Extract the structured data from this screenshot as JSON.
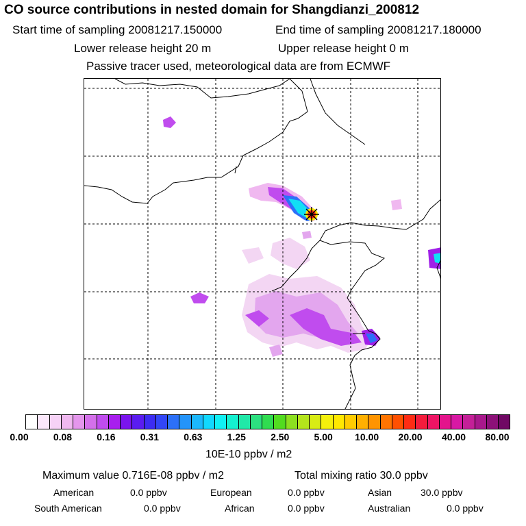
{
  "header": {
    "title": "CO  source contributions in nested domain for Shangdianzi_200812",
    "start_label": "Start time of sampling 20081217.150000",
    "end_label": "End time of sampling 20081217.180000",
    "lower_release": "Lower release height   20 m",
    "upper_release": "Upper release height    0 m",
    "tracer_note": "Passive tracer used, meteorological data are from ECMWF"
  },
  "colorbar": {
    "colors": [
      "#ffffff",
      "#fbe8fb",
      "#f6d2f6",
      "#f0b8f0",
      "#e496ec",
      "#d470ea",
      "#c04cee",
      "#a81eee",
      "#7a14ee",
      "#5a1cf0",
      "#3c2cf2",
      "#3246f6",
      "#2c70f8",
      "#2494fa",
      "#1cb8fc",
      "#12d8fe",
      "#10f0f4",
      "#14f0d0",
      "#20e8a8",
      "#2ce080",
      "#30dc50",
      "#52dc20",
      "#8ce020",
      "#b4e41c",
      "#d8ec14",
      "#f4f00c",
      "#ffe800",
      "#ffcc00",
      "#ffb000",
      "#ff9400",
      "#ff7400",
      "#ff5000",
      "#ff2c14",
      "#f41c3c",
      "#ee1464",
      "#e4148c",
      "#d818a4",
      "#c42098",
      "#a8188c",
      "#8c1078",
      "#700864"
    ],
    "tick_labels": [
      "0.00",
      "0.08",
      "0.16",
      "0.31",
      "0.63",
      "1.25",
      "2.50",
      "5.00",
      "10.00",
      "20.00",
      "40.00",
      "80.00"
    ],
    "units": "10E-10 ppbv / m2"
  },
  "summary": {
    "max_value": "Maximum value  0.716E-08 ppbv / m2",
    "total_mixing": "Total mixing ratio      30.0 ppbv",
    "rows": [
      [
        "American",
        "0.0 ppbv",
        "European",
        "0.0 ppbv",
        "Asian",
        "30.0 ppbv"
      ],
      [
        "South American",
        "0.0 ppbv",
        "African",
        "0.0 ppbv",
        "Australian",
        "0.0 ppbv"
      ]
    ]
  },
  "map": {
    "receptor_marker": "star-marker-icon",
    "plume_colors": {
      "light": "#f3d6f3",
      "mid": "#e3a6ee",
      "purple": "#c04cee",
      "deep": "#a020e8",
      "blue": "#2c70f8",
      "cyan": "#12e0f4"
    }
  }
}
